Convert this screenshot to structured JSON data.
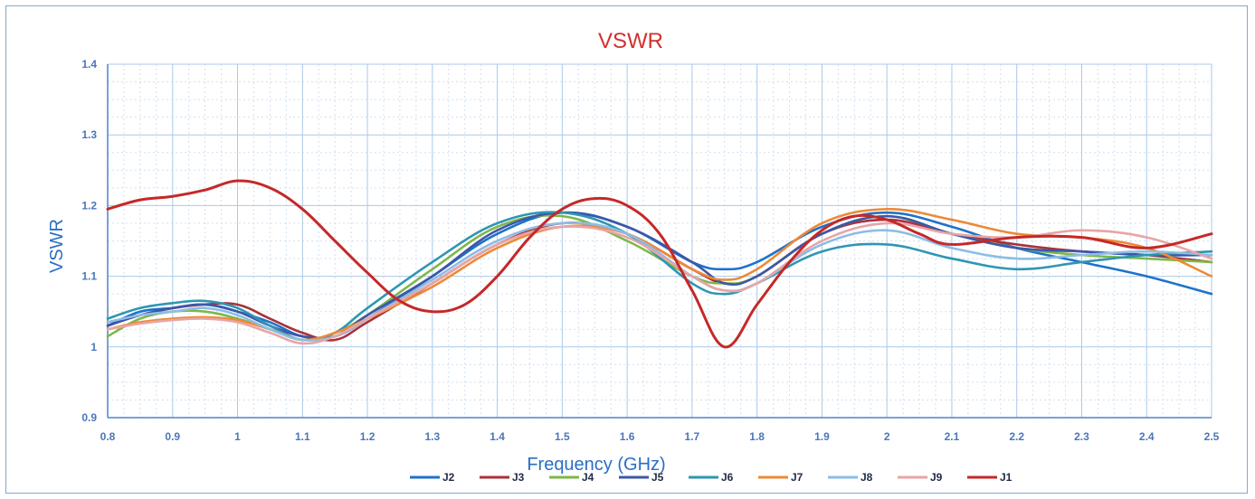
{
  "chart_data": {
    "type": "line",
    "title": "VSWR",
    "xlabel": "Frequency (GHz)",
    "ylabel": "VSWR",
    "xlim": [
      0.8,
      2.5
    ],
    "ylim": [
      0.9,
      1.4
    ],
    "x_ticks": [
      0.8,
      0.9,
      1,
      1.1,
      1.2,
      1.3,
      1.4,
      1.5,
      1.6,
      1.7,
      1.8,
      1.9,
      2,
      2.1,
      2.2,
      2.3,
      2.4,
      2.5
    ],
    "x_tick_labels": [
      "0.8",
      "0.9",
      "1",
      "1.1",
      "1.2",
      "1.3",
      "1.4",
      "1.5",
      "1.6",
      "1.7",
      "1.8",
      "1.9",
      "2",
      "2.1",
      "2.2",
      "2.3",
      "2.4",
      "2.5"
    ],
    "y_ticks": [
      0.9,
      1.0,
      1.1,
      1.2,
      1.3,
      1.4
    ],
    "y_tick_labels": [
      "0.9",
      "1",
      "1.1",
      "1.2",
      "1.3",
      "1.4"
    ],
    "grid": true,
    "legend_position": "bottom",
    "title_color": "#d0312d",
    "label_color": "#2a6fc4",
    "series": [
      {
        "name": "J2",
        "color": "#1f72c9",
        "x": [
          0.8,
          0.85,
          0.9,
          0.95,
          1.0,
          1.05,
          1.1,
          1.15,
          1.2,
          1.3,
          1.4,
          1.5,
          1.6,
          1.7,
          1.75,
          1.8,
          1.9,
          2.0,
          2.1,
          2.2,
          2.3,
          2.4,
          2.5
        ],
        "y": [
          1.03,
          1.05,
          1.055,
          1.06,
          1.05,
          1.035,
          1.015,
          1.015,
          1.04,
          1.1,
          1.16,
          1.19,
          1.17,
          1.12,
          1.11,
          1.12,
          1.17,
          1.19,
          1.17,
          1.14,
          1.12,
          1.1,
          1.075
        ]
      },
      {
        "name": "J3",
        "color": "#a8323a",
        "x": [
          0.8,
          0.85,
          0.9,
          0.95,
          1.0,
          1.05,
          1.1,
          1.15,
          1.2,
          1.3,
          1.4,
          1.5,
          1.6,
          1.7,
          1.75,
          1.8,
          1.9,
          2.0,
          2.1,
          2.2,
          2.3,
          2.4,
          2.5
        ],
        "y": [
          1.035,
          1.045,
          1.055,
          1.06,
          1.06,
          1.04,
          1.02,
          1.01,
          1.035,
          1.09,
          1.145,
          1.175,
          1.16,
          1.11,
          1.09,
          1.1,
          1.16,
          1.18,
          1.16,
          1.145,
          1.135,
          1.13,
          1.12
        ]
      },
      {
        "name": "J4",
        "color": "#7fb74a",
        "x": [
          0.8,
          0.85,
          0.9,
          0.95,
          1.0,
          1.05,
          1.1,
          1.15,
          1.2,
          1.3,
          1.4,
          1.5,
          1.6,
          1.7,
          1.75,
          1.8,
          1.9,
          2.0,
          2.1,
          2.2,
          2.3,
          2.4,
          2.5
        ],
        "y": [
          1.015,
          1.04,
          1.05,
          1.05,
          1.04,
          1.025,
          1.01,
          1.02,
          1.045,
          1.11,
          1.17,
          1.185,
          1.15,
          1.1,
          1.09,
          1.1,
          1.16,
          1.185,
          1.16,
          1.14,
          1.13,
          1.125,
          1.12
        ]
      },
      {
        "name": "J5",
        "color": "#3c57a8",
        "x": [
          0.8,
          0.85,
          0.9,
          0.95,
          1.0,
          1.05,
          1.1,
          1.15,
          1.2,
          1.3,
          1.4,
          1.5,
          1.6,
          1.7,
          1.75,
          1.8,
          1.9,
          2.0,
          2.1,
          2.2,
          2.3,
          2.4,
          2.5
        ],
        "y": [
          1.03,
          1.045,
          1.055,
          1.06,
          1.05,
          1.03,
          1.015,
          1.015,
          1.045,
          1.1,
          1.165,
          1.19,
          1.17,
          1.12,
          1.09,
          1.1,
          1.16,
          1.185,
          1.16,
          1.14,
          1.135,
          1.13,
          1.13
        ]
      },
      {
        "name": "J6",
        "color": "#2e96b3",
        "x": [
          0.8,
          0.85,
          0.9,
          0.95,
          1.0,
          1.05,
          1.1,
          1.15,
          1.2,
          1.3,
          1.4,
          1.5,
          1.6,
          1.7,
          1.75,
          1.8,
          1.9,
          2.0,
          2.1,
          2.2,
          2.3,
          2.4,
          2.5
        ],
        "y": [
          1.04,
          1.055,
          1.062,
          1.065,
          1.055,
          1.03,
          1.01,
          1.02,
          1.055,
          1.12,
          1.175,
          1.19,
          1.16,
          1.09,
          1.075,
          1.09,
          1.135,
          1.145,
          1.125,
          1.11,
          1.12,
          1.13,
          1.135
        ]
      },
      {
        "name": "J7",
        "color": "#ec8a37",
        "x": [
          0.8,
          0.85,
          0.9,
          0.95,
          1.0,
          1.05,
          1.1,
          1.15,
          1.2,
          1.3,
          1.4,
          1.5,
          1.6,
          1.7,
          1.75,
          1.8,
          1.9,
          2.0,
          2.1,
          2.2,
          2.3,
          2.4,
          2.5
        ],
        "y": [
          1.025,
          1.035,
          1.04,
          1.042,
          1.038,
          1.025,
          1.01,
          1.02,
          1.04,
          1.085,
          1.14,
          1.17,
          1.16,
          1.11,
          1.095,
          1.11,
          1.175,
          1.195,
          1.18,
          1.16,
          1.155,
          1.14,
          1.1
        ]
      },
      {
        "name": "J8",
        "color": "#8cbde6",
        "x": [
          0.8,
          0.85,
          0.9,
          0.95,
          1.0,
          1.05,
          1.1,
          1.15,
          1.2,
          1.3,
          1.4,
          1.5,
          1.6,
          1.7,
          1.75,
          1.8,
          1.9,
          2.0,
          2.1,
          2.2,
          2.3,
          2.4,
          2.5
        ],
        "y": [
          1.035,
          1.045,
          1.05,
          1.055,
          1.045,
          1.025,
          1.01,
          1.015,
          1.04,
          1.095,
          1.15,
          1.175,
          1.16,
          1.1,
          1.08,
          1.09,
          1.145,
          1.165,
          1.14,
          1.125,
          1.13,
          1.135,
          1.13
        ]
      },
      {
        "name": "J9",
        "color": "#e8a5a5",
        "x": [
          0.8,
          0.85,
          0.9,
          0.95,
          1.0,
          1.05,
          1.1,
          1.15,
          1.2,
          1.3,
          1.4,
          1.5,
          1.6,
          1.7,
          1.75,
          1.8,
          1.9,
          2.0,
          2.1,
          2.2,
          2.3,
          2.4,
          2.5
        ],
        "y": [
          1.025,
          1.033,
          1.038,
          1.04,
          1.035,
          1.02,
          1.005,
          1.015,
          1.04,
          1.09,
          1.145,
          1.17,
          1.155,
          1.1,
          1.08,
          1.09,
          1.15,
          1.175,
          1.16,
          1.155,
          1.165,
          1.155,
          1.125
        ]
      },
      {
        "name": "J1",
        "color": "#c62828",
        "x": [
          0.8,
          0.85,
          0.9,
          0.95,
          1.0,
          1.05,
          1.1,
          1.15,
          1.2,
          1.25,
          1.3,
          1.35,
          1.4,
          1.45,
          1.5,
          1.55,
          1.6,
          1.65,
          1.7,
          1.75,
          1.8,
          1.85,
          1.9,
          1.95,
          2.0,
          2.05,
          2.1,
          2.2,
          2.3,
          2.4,
          2.5
        ],
        "y": [
          1.195,
          1.208,
          1.213,
          1.222,
          1.235,
          1.225,
          1.195,
          1.15,
          1.105,
          1.065,
          1.05,
          1.06,
          1.1,
          1.155,
          1.195,
          1.21,
          1.2,
          1.16,
          1.08,
          1.0,
          1.06,
          1.12,
          1.165,
          1.185,
          1.18,
          1.16,
          1.145,
          1.155,
          1.155,
          1.14,
          1.16
        ]
      }
    ]
  }
}
